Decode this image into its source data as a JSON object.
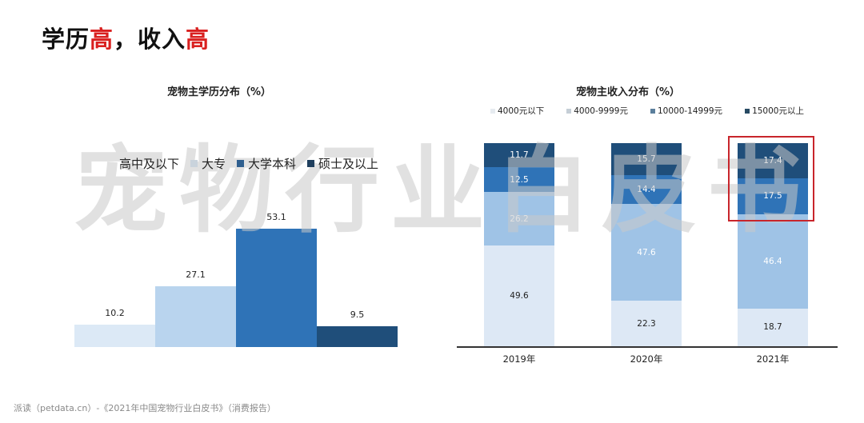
{
  "headline": {
    "part1": "学历",
    "part2": "高",
    "part3": "，收入",
    "part4": "高"
  },
  "watermark": "宠物行业白皮书",
  "footer": "派读（petdata.cn）-《2021年中国宠物行业白皮书》（消费报告）",
  "highlight_box": {
    "color": "#c8252b",
    "target": "2021年 10000-14999元 & 15000元以上"
  },
  "chart_data": [
    {
      "type": "bar",
      "title": "宠物主学历分布（%）",
      "categories": [
        "高中及以下",
        "大专",
        "大学本科",
        "硕士及以上"
      ],
      "values": [
        10.2,
        27.1,
        53.1,
        9.5
      ],
      "value_labels": [
        "10.2",
        "27.1",
        "53.1",
        "9.5"
      ],
      "colors": [
        "#dce9f6",
        "#b9d4ee",
        "#2f73b7",
        "#1f4e7a"
      ],
      "legend": [
        "高中及以下",
        "大专",
        "大学本科",
        "硕士及以上"
      ],
      "legend_position": "top",
      "xlabel": "",
      "ylabel": "",
      "ylim": [
        0,
        60
      ],
      "grid": false
    },
    {
      "type": "bar",
      "stacked": true,
      "title": "宠物主收入分布（%）",
      "categories": [
        "2019年",
        "2020年",
        "2021年"
      ],
      "series": [
        {
          "name": "4000元以下",
          "values": [
            49.6,
            22.3,
            18.7
          ],
          "labels": [
            "49.6",
            "22.3",
            "18.7"
          ],
          "color": "#dde8f5"
        },
        {
          "name": "4000-9999元",
          "values": [
            26.2,
            47.6,
            46.4
          ],
          "labels": [
            "26.2",
            "47.6",
            "46.4"
          ],
          "color": "#9fc3e6"
        },
        {
          "name": "10000-14999元",
          "values": [
            12.5,
            14.4,
            17.5
          ],
          "labels": [
            "12.5",
            "14.4",
            "17.5"
          ],
          "color": "#2f73b7"
        },
        {
          "name": "15000元以上",
          "values": [
            11.7,
            15.7,
            17.4
          ],
          "labels": [
            "11.7",
            "15.7",
            "17.4"
          ],
          "color": "#1f4e7a"
        }
      ],
      "legend_position": "top",
      "xlabel": "",
      "ylabel": "",
      "ylim": [
        0,
        100
      ],
      "grid": false
    }
  ]
}
